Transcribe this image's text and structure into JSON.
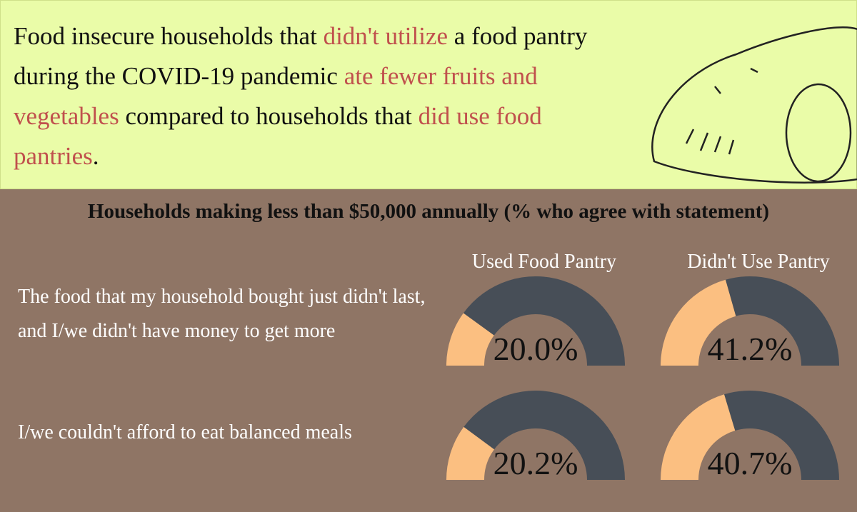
{
  "headline": [
    {
      "text": "Food insecure households that ",
      "highlight": false
    },
    {
      "text": "didn't utilize",
      "highlight": true
    },
    {
      "text": " a food pantry during the COVID-19 pandemic ",
      "highlight": false
    },
    {
      "text": "ate fewer fruits and vegetables",
      "highlight": true
    },
    {
      "text": " compared to households that ",
      "highlight": false
    },
    {
      "text": "did use food pantries",
      "highlight": true
    },
    {
      "text": ".",
      "highlight": false
    }
  ],
  "highlight_color": "#c0504d",
  "chart_data": {
    "type": "gauge",
    "title": "Households making less than $50,000 annually (% who agree with statement)",
    "categories": [
      "The food that my household bought just didn't last, and I/we didn't have money to get more",
      "I/we couldn't afford to eat balanced meals"
    ],
    "series": [
      {
        "name": "Used Food Pantry",
        "color": "#fbbf81",
        "values": [
          20.0,
          20.2
        ],
        "value_labels": [
          "20.0%",
          "20.2%"
        ]
      },
      {
        "name": "Didn't Use Pantry",
        "color": "#fbbf81",
        "values": [
          41.2,
          40.7
        ],
        "value_labels": [
          "41.2%",
          "40.7%"
        ]
      }
    ],
    "ylim": [
      0,
      100
    ],
    "track_color": "#474e57"
  }
}
